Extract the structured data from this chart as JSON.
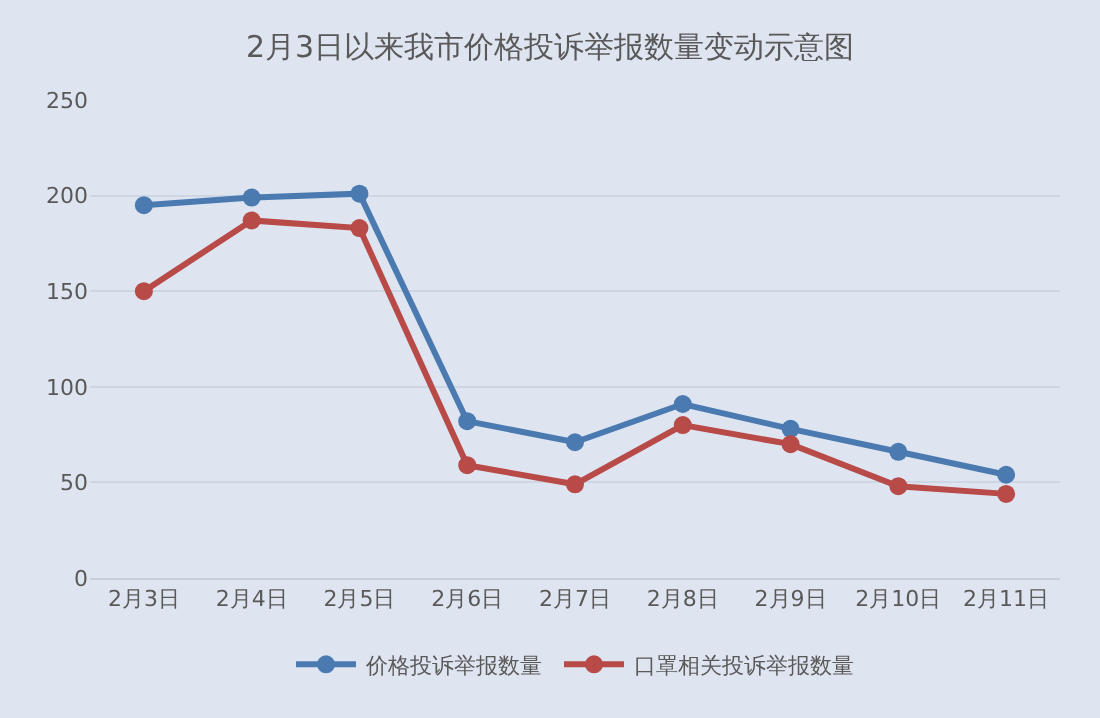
{
  "chart_data": {
    "type": "line",
    "title": "2月3日以来我市价格投诉举报数量变动示意图",
    "categories": [
      "2月3日",
      "2月4日",
      "2月5日",
      "2月6日",
      "2月7日",
      "2月8日",
      "2月9日",
      "2月10日",
      "2月11日"
    ],
    "series": [
      {
        "name": "价格投诉举报数量",
        "color": "#4a7ab0",
        "values": [
          195,
          199,
          201,
          82,
          71,
          91,
          78,
          66,
          54
        ]
      },
      {
        "name": "口罩相关投诉举报数量",
        "color": "#b84a48",
        "values": [
          150,
          187,
          183,
          59,
          49,
          80,
          70,
          48,
          44
        ]
      }
    ],
    "ylim": [
      0,
      250
    ],
    "yticks": [
      0,
      50,
      100,
      150,
      200,
      250
    ],
    "grid": "y",
    "legend": "bottom",
    "marker": "circle",
    "line_style": "solid"
  }
}
